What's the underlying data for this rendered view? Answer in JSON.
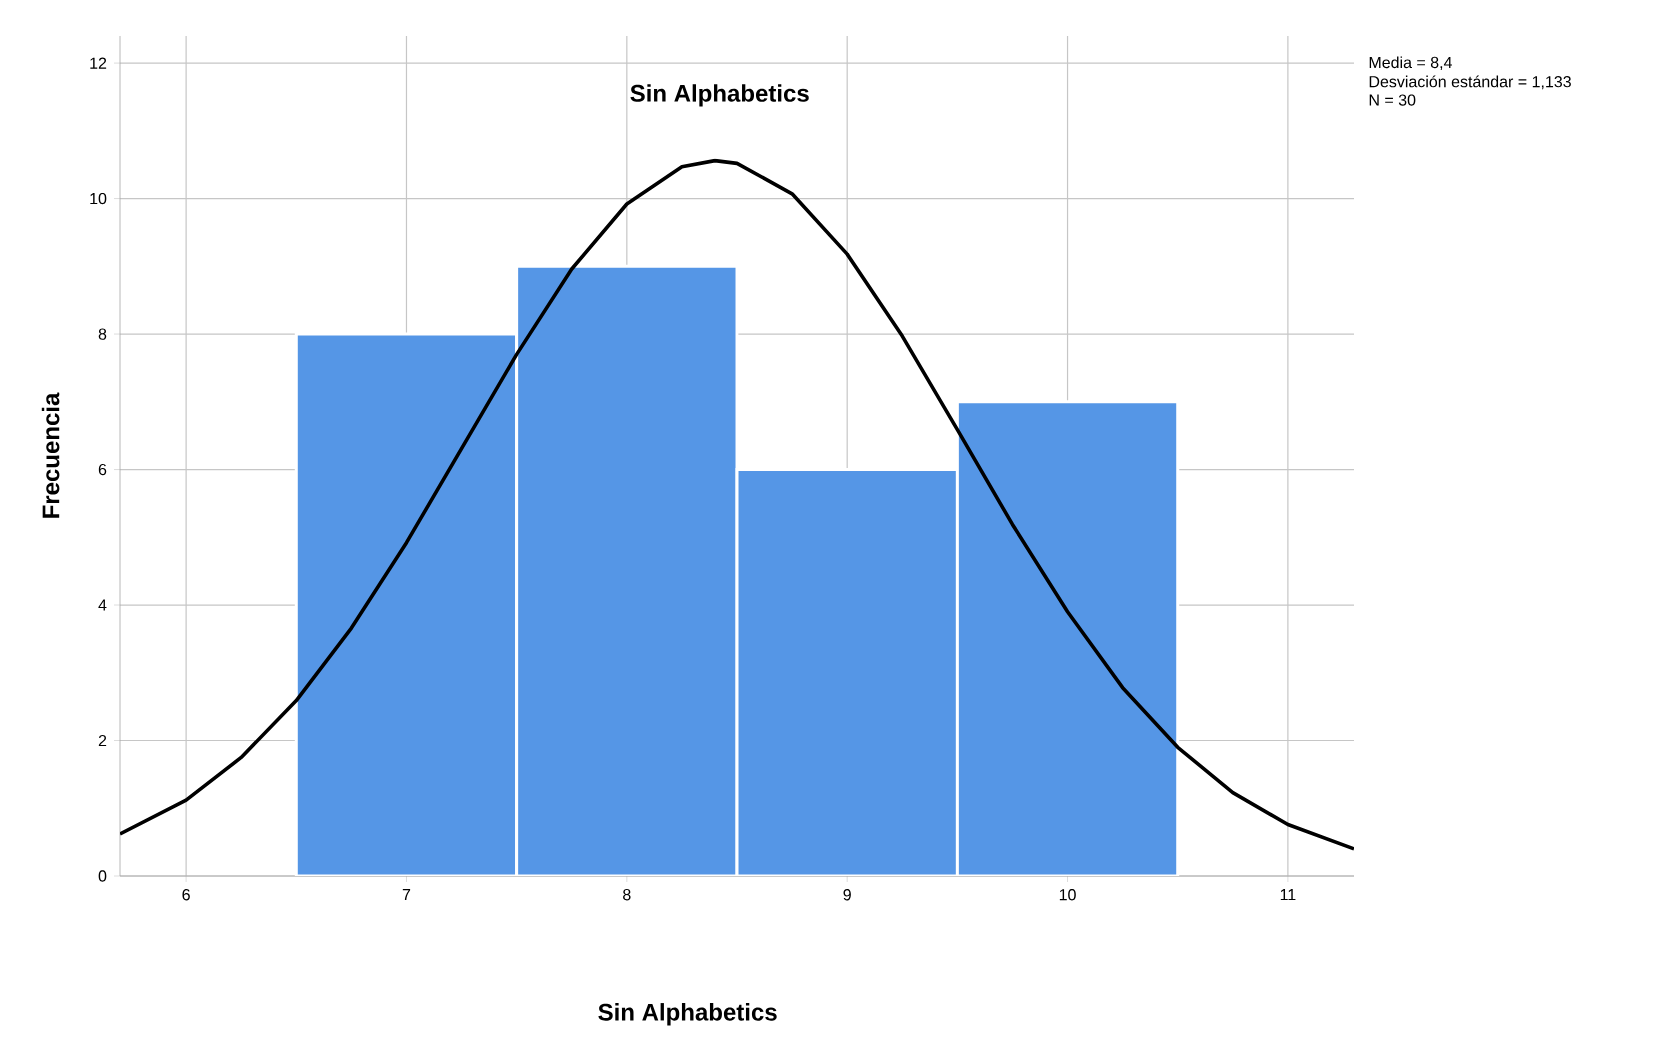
{
  "chart_data": {
    "type": "histogram",
    "title": "Sin Alphabetics",
    "xlabel": "Sin Alphabetics",
    "ylabel": "Frecuencia",
    "bins": [
      6.5,
      7.5,
      8.5,
      9.5,
      10.5
    ],
    "values": [
      8,
      9,
      6,
      7
    ],
    "color": "#5596e6",
    "series": [
      {
        "type": "line",
        "color": "#000000",
        "x": [
          5.7,
          6.0,
          6.25,
          6.5,
          6.75,
          7.0,
          7.25,
          7.5,
          7.75,
          8.0,
          8.25,
          8.4,
          8.5,
          8.75,
          9.0,
          9.25,
          9.5,
          9.75,
          10.0,
          10.25,
          10.5,
          10.75,
          11.0,
          11.3
        ],
        "values": [
          0.62,
          1.12,
          1.75,
          2.59,
          3.66,
          4.92,
          6.31,
          7.7,
          8.96,
          9.92,
          10.47,
          10.56,
          10.52,
          10.07,
          9.18,
          7.97,
          6.59,
          5.19,
          3.9,
          2.78,
          1.9,
          1.23,
          0.76,
          0.4
        ]
      }
    ],
    "xlim": [
      5.7,
      11.3
    ],
    "ylim": [
      0,
      12.4
    ],
    "xticks": [
      6,
      7,
      8,
      9,
      10,
      11
    ],
    "yticks": [
      0,
      2,
      4,
      6,
      8,
      10,
      12
    ],
    "grid": true,
    "annotations": [
      "Media = 8,4",
      "Desviación estándar = 1,133",
      "N = 30"
    ]
  }
}
